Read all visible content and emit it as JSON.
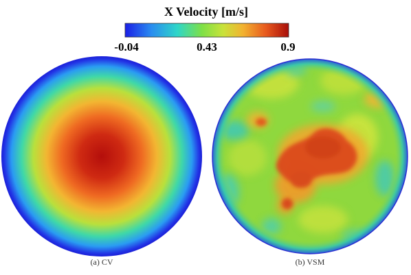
{
  "colorbar": {
    "title": "X Velocity [m/s]",
    "ticks": [
      "-0.04",
      "0.43",
      "0.9"
    ],
    "stops": [
      "#1a1ee6",
      "#2a8cf0",
      "#2ed6c8",
      "#7ee046",
      "#c9e23a",
      "#f2b330",
      "#e85a1e",
      "#a80e0a"
    ]
  },
  "panels": [
    {
      "caption": "(a) CV"
    },
    {
      "caption": "(b) VSM"
    }
  ],
  "colors": {
    "rim": "#2a2ad0",
    "vsm_base": "#8fd83e"
  }
}
